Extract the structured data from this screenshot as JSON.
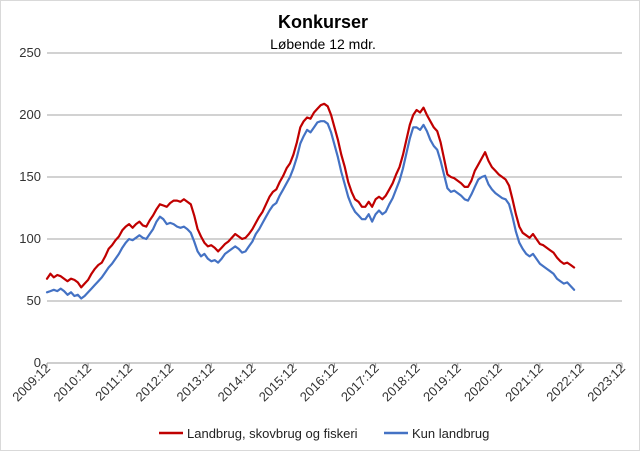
{
  "chart_data": {
    "type": "line",
    "title": "Konkurser",
    "subtitle": "Løbende 12 mdr.",
    "xlabel": "",
    "ylabel": "",
    "ylim": [
      0,
      250
    ],
    "yticks": [
      0,
      50,
      100,
      150,
      200,
      250
    ],
    "xticks": [
      "2009:12",
      "2010:12",
      "2011:12",
      "2012:12",
      "2013:12",
      "2014:12",
      "2015:12",
      "2016:12",
      "2017:12",
      "2018:12",
      "2019:12",
      "2020:12",
      "2021:12",
      "2022:12",
      "2023:12"
    ],
    "x_start": "2009:12",
    "x_end": "2023:12",
    "grid": "horizontal",
    "legend_position": "bottom",
    "series": [
      {
        "name": "Landbrug, skovbrug og fiskeri",
        "color": "#c00000",
        "data": [
          [
            0,
            68
          ],
          [
            1,
            72
          ],
          [
            2,
            69
          ],
          [
            3,
            71
          ],
          [
            4,
            70
          ],
          [
            5,
            68
          ],
          [
            6,
            66
          ],
          [
            7,
            68
          ],
          [
            8,
            67
          ],
          [
            9,
            65
          ],
          [
            10,
            61
          ],
          [
            11,
            64
          ],
          [
            12,
            67
          ],
          [
            13,
            72
          ],
          [
            14,
            76
          ],
          [
            15,
            79
          ],
          [
            16,
            81
          ],
          [
            17,
            86
          ],
          [
            18,
            92
          ],
          [
            19,
            95
          ],
          [
            20,
            99
          ],
          [
            21,
            102
          ],
          [
            22,
            107
          ],
          [
            23,
            110
          ],
          [
            24,
            112
          ],
          [
            25,
            109
          ],
          [
            26,
            112
          ],
          [
            27,
            114
          ],
          [
            28,
            111
          ],
          [
            29,
            110
          ],
          [
            30,
            115
          ],
          [
            31,
            119
          ],
          [
            32,
            124
          ],
          [
            33,
            128
          ],
          [
            34,
            127
          ],
          [
            35,
            126
          ],
          [
            36,
            129
          ],
          [
            37,
            131
          ],
          [
            38,
            131
          ],
          [
            39,
            130
          ],
          [
            40,
            132
          ],
          [
            41,
            130
          ],
          [
            42,
            128
          ],
          [
            43,
            119
          ],
          [
            44,
            108
          ],
          [
            45,
            102
          ],
          [
            46,
            97
          ],
          [
            47,
            94
          ],
          [
            48,
            95
          ],
          [
            49,
            93
          ],
          [
            50,
            90
          ],
          [
            51,
            93
          ],
          [
            52,
            96
          ],
          [
            53,
            98
          ],
          [
            54,
            101
          ],
          [
            55,
            104
          ],
          [
            56,
            102
          ],
          [
            57,
            100
          ],
          [
            58,
            101
          ],
          [
            59,
            104
          ],
          [
            60,
            108
          ],
          [
            61,
            113
          ],
          [
            62,
            118
          ],
          [
            63,
            122
          ],
          [
            64,
            128
          ],
          [
            65,
            134
          ],
          [
            66,
            138
          ],
          [
            67,
            140
          ],
          [
            68,
            146
          ],
          [
            69,
            151
          ],
          [
            70,
            157
          ],
          [
            71,
            161
          ],
          [
            72,
            168
          ],
          [
            73,
            178
          ],
          [
            74,
            190
          ],
          [
            75,
            195
          ],
          [
            76,
            198
          ],
          [
            77,
            197
          ],
          [
            78,
            202
          ],
          [
            79,
            205
          ],
          [
            80,
            208
          ],
          [
            81,
            209
          ],
          [
            82,
            207
          ],
          [
            83,
            200
          ],
          [
            84,
            190
          ],
          [
            85,
            180
          ],
          [
            86,
            168
          ],
          [
            87,
            158
          ],
          [
            88,
            146
          ],
          [
            89,
            138
          ],
          [
            90,
            132
          ],
          [
            91,
            130
          ],
          [
            92,
            126
          ],
          [
            93,
            126
          ],
          [
            94,
            130
          ],
          [
            95,
            126
          ],
          [
            96,
            132
          ],
          [
            97,
            134
          ],
          [
            98,
            132
          ],
          [
            99,
            135
          ],
          [
            100,
            140
          ],
          [
            101,
            145
          ],
          [
            102,
            152
          ],
          [
            103,
            158
          ],
          [
            104,
            168
          ],
          [
            105,
            180
          ],
          [
            106,
            192
          ],
          [
            107,
            200
          ],
          [
            108,
            204
          ],
          [
            109,
            202
          ],
          [
            110,
            206
          ],
          [
            111,
            200
          ],
          [
            112,
            195
          ],
          [
            113,
            190
          ],
          [
            114,
            187
          ],
          [
            115,
            178
          ],
          [
            116,
            165
          ],
          [
            117,
            152
          ],
          [
            118,
            150
          ],
          [
            119,
            149
          ],
          [
            120,
            147
          ],
          [
            121,
            145
          ],
          [
            122,
            142
          ],
          [
            123,
            142
          ],
          [
            124,
            147
          ],
          [
            125,
            155
          ],
          [
            126,
            160
          ],
          [
            127,
            165
          ],
          [
            128,
            170
          ],
          [
            129,
            163
          ],
          [
            130,
            158
          ],
          [
            131,
            155
          ],
          [
            132,
            152
          ],
          [
            133,
            150
          ],
          [
            134,
            148
          ],
          [
            135,
            143
          ],
          [
            136,
            132
          ],
          [
            137,
            120
          ],
          [
            138,
            110
          ],
          [
            139,
            105
          ],
          [
            140,
            103
          ],
          [
            141,
            101
          ],
          [
            142,
            104
          ],
          [
            143,
            100
          ],
          [
            144,
            96
          ],
          [
            145,
            95
          ],
          [
            146,
            93
          ],
          [
            147,
            91
          ],
          [
            148,
            89
          ],
          [
            149,
            85
          ],
          [
            150,
            82
          ],
          [
            151,
            80
          ],
          [
            152,
            81
          ],
          [
            153,
            79
          ],
          [
            154,
            77
          ]
        ]
      },
      {
        "name": "Kun landbrug",
        "color": "#4472c4",
        "data": [
          [
            0,
            57
          ],
          [
            1,
            58
          ],
          [
            2,
            59
          ],
          [
            3,
            58
          ],
          [
            4,
            60
          ],
          [
            5,
            58
          ],
          [
            6,
            55
          ],
          [
            7,
            57
          ],
          [
            8,
            54
          ],
          [
            9,
            55
          ],
          [
            10,
            52
          ],
          [
            11,
            54
          ],
          [
            12,
            57
          ],
          [
            13,
            60
          ],
          [
            14,
            63
          ],
          [
            15,
            66
          ],
          [
            16,
            69
          ],
          [
            17,
            73
          ],
          [
            18,
            77
          ],
          [
            19,
            80
          ],
          [
            20,
            84
          ],
          [
            21,
            88
          ],
          [
            22,
            93
          ],
          [
            23,
            97
          ],
          [
            24,
            100
          ],
          [
            25,
            99
          ],
          [
            26,
            101
          ],
          [
            27,
            103
          ],
          [
            28,
            101
          ],
          [
            29,
            100
          ],
          [
            30,
            104
          ],
          [
            31,
            108
          ],
          [
            32,
            114
          ],
          [
            33,
            118
          ],
          [
            34,
            116
          ],
          [
            35,
            112
          ],
          [
            36,
            113
          ],
          [
            37,
            112
          ],
          [
            38,
            110
          ],
          [
            39,
            109
          ],
          [
            40,
            110
          ],
          [
            41,
            108
          ],
          [
            42,
            105
          ],
          [
            43,
            98
          ],
          [
            44,
            90
          ],
          [
            45,
            86
          ],
          [
            46,
            88
          ],
          [
            47,
            84
          ],
          [
            48,
            82
          ],
          [
            49,
            83
          ],
          [
            50,
            81
          ],
          [
            51,
            84
          ],
          [
            52,
            88
          ],
          [
            53,
            90
          ],
          [
            54,
            92
          ],
          [
            55,
            94
          ],
          [
            56,
            92
          ],
          [
            57,
            89
          ],
          [
            58,
            90
          ],
          [
            59,
            94
          ],
          [
            60,
            98
          ],
          [
            61,
            104
          ],
          [
            62,
            108
          ],
          [
            63,
            113
          ],
          [
            64,
            118
          ],
          [
            65,
            123
          ],
          [
            66,
            127
          ],
          [
            67,
            129
          ],
          [
            68,
            135
          ],
          [
            69,
            140
          ],
          [
            70,
            145
          ],
          [
            71,
            150
          ],
          [
            72,
            157
          ],
          [
            73,
            166
          ],
          [
            74,
            177
          ],
          [
            75,
            183
          ],
          [
            76,
            188
          ],
          [
            77,
            186
          ],
          [
            78,
            190
          ],
          [
            79,
            194
          ],
          [
            80,
            195
          ],
          [
            81,
            195
          ],
          [
            82,
            193
          ],
          [
            83,
            186
          ],
          [
            84,
            176
          ],
          [
            85,
            166
          ],
          [
            86,
            154
          ],
          [
            87,
            144
          ],
          [
            88,
            134
          ],
          [
            89,
            127
          ],
          [
            90,
            122
          ],
          [
            91,
            119
          ],
          [
            92,
            116
          ],
          [
            93,
            116
          ],
          [
            94,
            120
          ],
          [
            95,
            114
          ],
          [
            96,
            120
          ],
          [
            97,
            123
          ],
          [
            98,
            120
          ],
          [
            99,
            122
          ],
          [
            100,
            128
          ],
          [
            101,
            133
          ],
          [
            102,
            140
          ],
          [
            103,
            147
          ],
          [
            104,
            157
          ],
          [
            105,
            169
          ],
          [
            106,
            181
          ],
          [
            107,
            190
          ],
          [
            108,
            190
          ],
          [
            109,
            188
          ],
          [
            110,
            192
          ],
          [
            111,
            187
          ],
          [
            112,
            180
          ],
          [
            113,
            175
          ],
          [
            114,
            172
          ],
          [
            115,
            163
          ],
          [
            116,
            152
          ],
          [
            117,
            141
          ],
          [
            118,
            138
          ],
          [
            119,
            139
          ],
          [
            120,
            137
          ],
          [
            121,
            135
          ],
          [
            122,
            132
          ],
          [
            123,
            131
          ],
          [
            124,
            136
          ],
          [
            125,
            142
          ],
          [
            126,
            148
          ],
          [
            127,
            150
          ],
          [
            128,
            151
          ],
          [
            129,
            144
          ],
          [
            130,
            140
          ],
          [
            131,
            137
          ],
          [
            132,
            135
          ],
          [
            133,
            133
          ],
          [
            134,
            132
          ],
          [
            135,
            128
          ],
          [
            136,
            118
          ],
          [
            137,
            106
          ],
          [
            138,
            97
          ],
          [
            139,
            92
          ],
          [
            140,
            88
          ],
          [
            141,
            86
          ],
          [
            142,
            88
          ],
          [
            143,
            84
          ],
          [
            144,
            80
          ],
          [
            145,
            78
          ],
          [
            146,
            76
          ],
          [
            147,
            74
          ],
          [
            148,
            72
          ],
          [
            149,
            68
          ],
          [
            150,
            66
          ],
          [
            151,
            64
          ],
          [
            152,
            65
          ],
          [
            153,
            62
          ],
          [
            154,
            59
          ]
        ]
      }
    ]
  }
}
